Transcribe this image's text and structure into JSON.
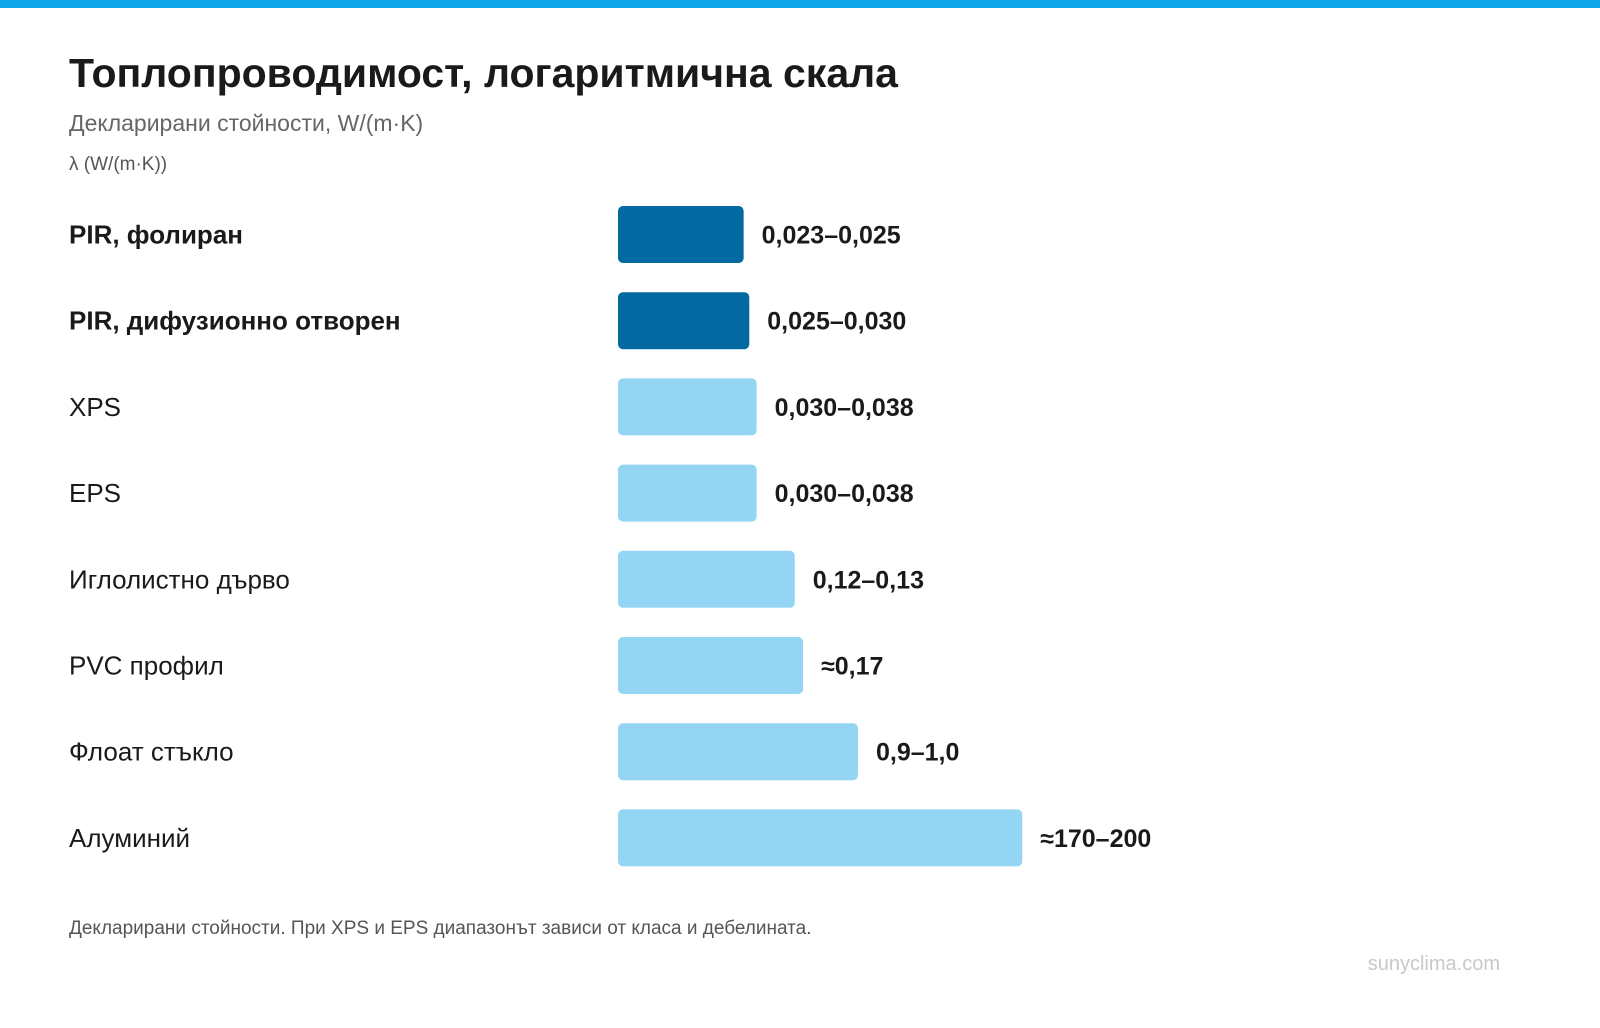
{
  "header": {
    "title": "Топлопроводимост, логаритмична скала",
    "subtitle": "Декларирани стойности, W/(m·K)",
    "axis_label": "λ (W/(m·K))"
  },
  "colors": {
    "accent": "#0ea5e9",
    "highlight_bar": "#0369a1",
    "bar": "#93d5f3",
    "text": "#1a1a1a"
  },
  "footer": {
    "note": "Декларирани стойности. При XPS и EPS диапазонът зависи от класа и дебелината.",
    "watermark": "sunyclima.com"
  },
  "chart_data": {
    "type": "bar",
    "orientation": "horizontal",
    "scale": "log",
    "title": "Топлопроводимост, логаритмична скала",
    "subtitle": "Декларирани стойности, W/(m·K)",
    "xlabel": "λ (W/(m·K))",
    "ylabel": "",
    "grid": false,
    "categories": [
      "PIR, фолиран",
      "PIR, дифузионно отворен",
      "XPS",
      "EPS",
      "Иглолистно дърво",
      "PVC профил",
      "Флоат стъкло",
      "Алуминий"
    ],
    "value_labels": [
      "0,023–0,025",
      "0,025–0,030",
      "0,030–0,038",
      "0,030–0,038",
      "0,12–0,13",
      "≈0,17",
      "0,9–1,0",
      "≈170–200"
    ],
    "ranges": [
      [
        0.023,
        0.025
      ],
      [
        0.025,
        0.03
      ],
      [
        0.03,
        0.038
      ],
      [
        0.03,
        0.038
      ],
      [
        0.12,
        0.13
      ],
      [
        0.17,
        0.17
      ],
      [
        0.9,
        1.0
      ],
      [
        170,
        200
      ]
    ],
    "values": [
      0.025,
      0.03,
      0.038,
      0.038,
      0.13,
      0.17,
      1.0,
      200
    ],
    "highlighted": [
      true,
      true,
      false,
      false,
      false,
      false,
      false,
      false
    ]
  }
}
